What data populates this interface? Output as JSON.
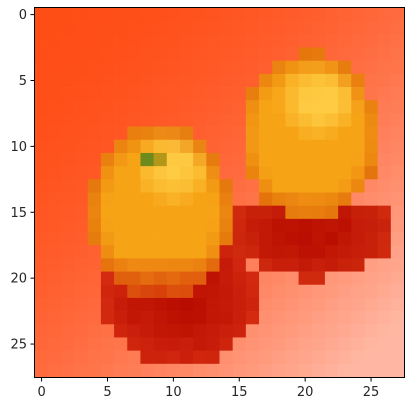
{
  "image": {
    "subject": "two oranges on a red-orange background (pixelated 28x28 thumbnail)",
    "grid_size": [
      28,
      28
    ],
    "colors": {
      "background_top_left": "#ff4d16",
      "background_bottom_right": "#ffb7a3",
      "orange_light": "#ffd24a",
      "orange_mid": "#f7a316",
      "orange_dark": "#e06a0a",
      "shadow": "#b80c00",
      "stem": "#6f8a1c"
    }
  },
  "axes": {
    "x_ticks": [
      "0",
      "5",
      "10",
      "15",
      "20",
      "25"
    ],
    "y_ticks": [
      "0",
      "5",
      "10",
      "15",
      "20",
      "25"
    ]
  }
}
